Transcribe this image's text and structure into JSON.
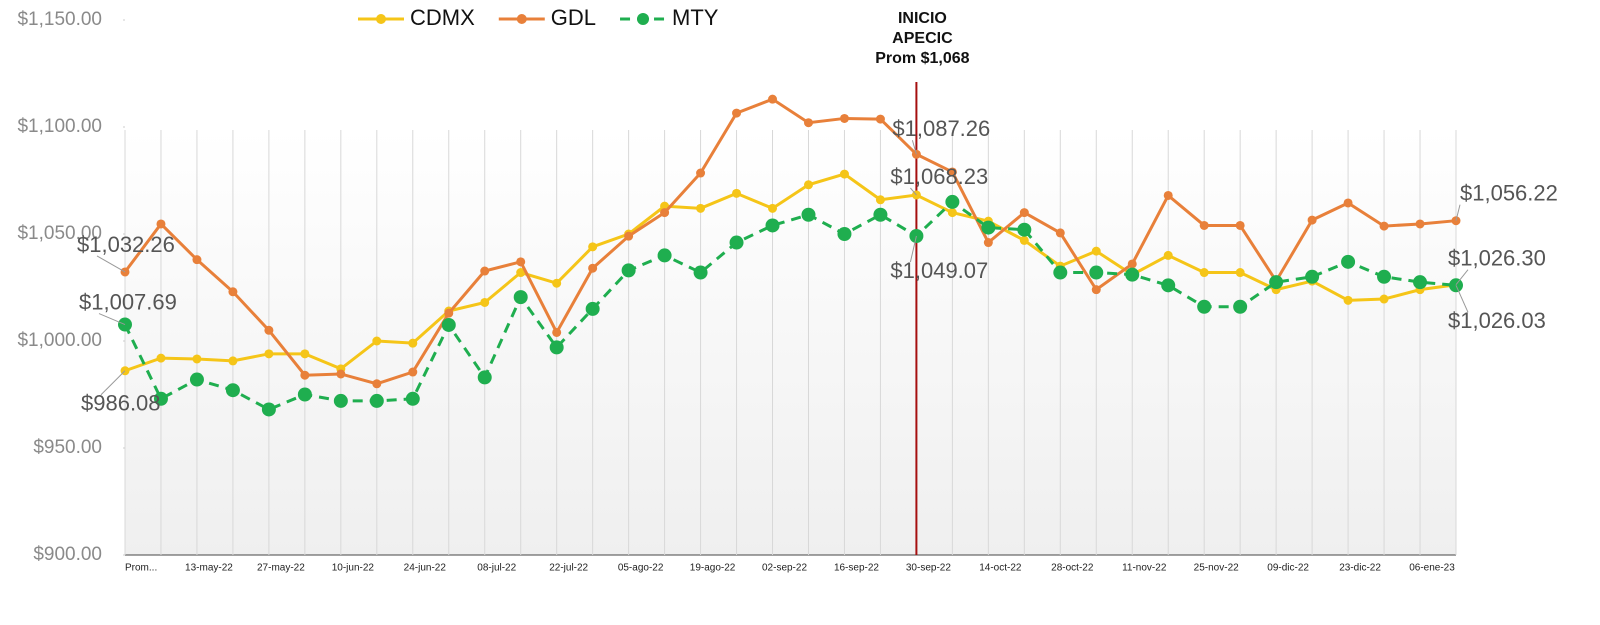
{
  "chart_data": {
    "type": "line",
    "categories": [
      "Prom...",
      null,
      "13-may-22",
      null,
      "27-may-22",
      null,
      "10-jun-22",
      null,
      "24-jun-22",
      null,
      "08-jul-22",
      null,
      "22-jul-22",
      null,
      "05-ago-22",
      null,
      "19-ago-22",
      null,
      "02-sep-22",
      null,
      "16-sep-22",
      null,
      "30-sep-22",
      null,
      "14-oct-22",
      null,
      "28-oct-22",
      null,
      "11-nov-22",
      null,
      "25-nov-22",
      null,
      "09-dic-22",
      null,
      "23-dic-22",
      null,
      "06-ene-23",
      null
    ],
    "series": [
      {
        "name": "CDMX",
        "color": "#f5c518",
        "dash": false,
        "values": [
          986.08,
          992,
          991.6,
          990.7,
          994,
          994,
          987,
          1000,
          999,
          1014,
          1018,
          1032,
          1027,
          1044,
          1050,
          1063,
          1062,
          1069,
          1062,
          1073,
          1078,
          1066,
          1068.23,
          1060,
          1056,
          1047,
          1035,
          1042,
          1031,
          1040,
          1032,
          1032,
          1024,
          1028,
          1019,
          1019.6,
          1024,
          1026.3
        ],
        "value_labels": [
          "$986.08",
          null,
          null,
          null,
          null,
          null,
          null,
          null,
          null,
          null,
          null,
          null,
          null,
          null,
          null,
          null,
          null,
          null,
          null,
          null,
          null,
          null,
          "$1,068.23",
          null,
          null,
          null,
          null,
          null,
          null,
          null,
          null,
          null,
          null,
          null,
          null,
          null,
          null,
          "$1,026.30"
        ]
      },
      {
        "name": "GDL",
        "color": "#e8803a",
        "dash": false,
        "values": [
          1032.26,
          1054.7,
          1038,
          1023,
          1005,
          984,
          984.6,
          980,
          985.5,
          1013,
          1032.7,
          1037,
          1004,
          1034,
          1049,
          1060,
          1078.5,
          1106.5,
          1113,
          1102,
          1104,
          1103.7,
          1087.26,
          1079,
          1046,
          1060,
          1050.5,
          1024,
          1036,
          1068,
          1054,
          1054,
          1028,
          1056.5,
          1064.5,
          1053.7,
          1054.7,
          1056.22
        ],
        "value_labels": [
          "$1,032.26",
          null,
          null,
          null,
          null,
          null,
          null,
          null,
          null,
          null,
          null,
          null,
          null,
          null,
          null,
          null,
          null,
          null,
          null,
          null,
          null,
          null,
          "$1,087.26",
          null,
          null,
          null,
          null,
          null,
          null,
          null,
          null,
          null,
          null,
          null,
          null,
          null,
          null,
          "$1,056.22"
        ]
      },
      {
        "name": "MTY",
        "color": "#1fae4f",
        "dash": true,
        "values": [
          1007.69,
          973,
          982,
          977,
          968,
          975,
          972,
          972,
          973,
          1007.5,
          983,
          1020.5,
          997,
          1015,
          1033,
          1040,
          1032,
          1046,
          1054,
          1059,
          1050,
          1059,
          1049.07,
          1065,
          1053,
          1052,
          1032,
          1032,
          1031,
          1026,
          1016,
          1016,
          1027.5,
          1030,
          1037,
          1030,
          1027.5,
          1026.03
        ],
        "value_labels": [
          "$1,007.69",
          null,
          null,
          null,
          null,
          null,
          null,
          null,
          null,
          null,
          null,
          null,
          null,
          null,
          null,
          null,
          null,
          null,
          null,
          null,
          null,
          null,
          "$1,049.07",
          null,
          null,
          null,
          null,
          null,
          null,
          null,
          null,
          null,
          null,
          null,
          null,
          null,
          null,
          "$1,026.03"
        ]
      }
    ],
    "ylim": [
      900,
      1150
    ],
    "yticks": [
      {
        "value": 900,
        "label": "$900.00"
      },
      {
        "value": 950,
        "label": "$950.00"
      },
      {
        "value": 1000,
        "label": "$1,000.00"
      },
      {
        "value": 1050,
        "label": "$1,050.00"
      },
      {
        "value": 1100,
        "label": "$1,100.00"
      },
      {
        "value": 1150,
        "label": "$1,150.00"
      }
    ],
    "legend": "top",
    "annotation": {
      "category": "30-sep-22",
      "lines": [
        "INICIO",
        "APECIC",
        "Prom $1,068"
      ],
      "color": "#a50f0f"
    }
  }
}
